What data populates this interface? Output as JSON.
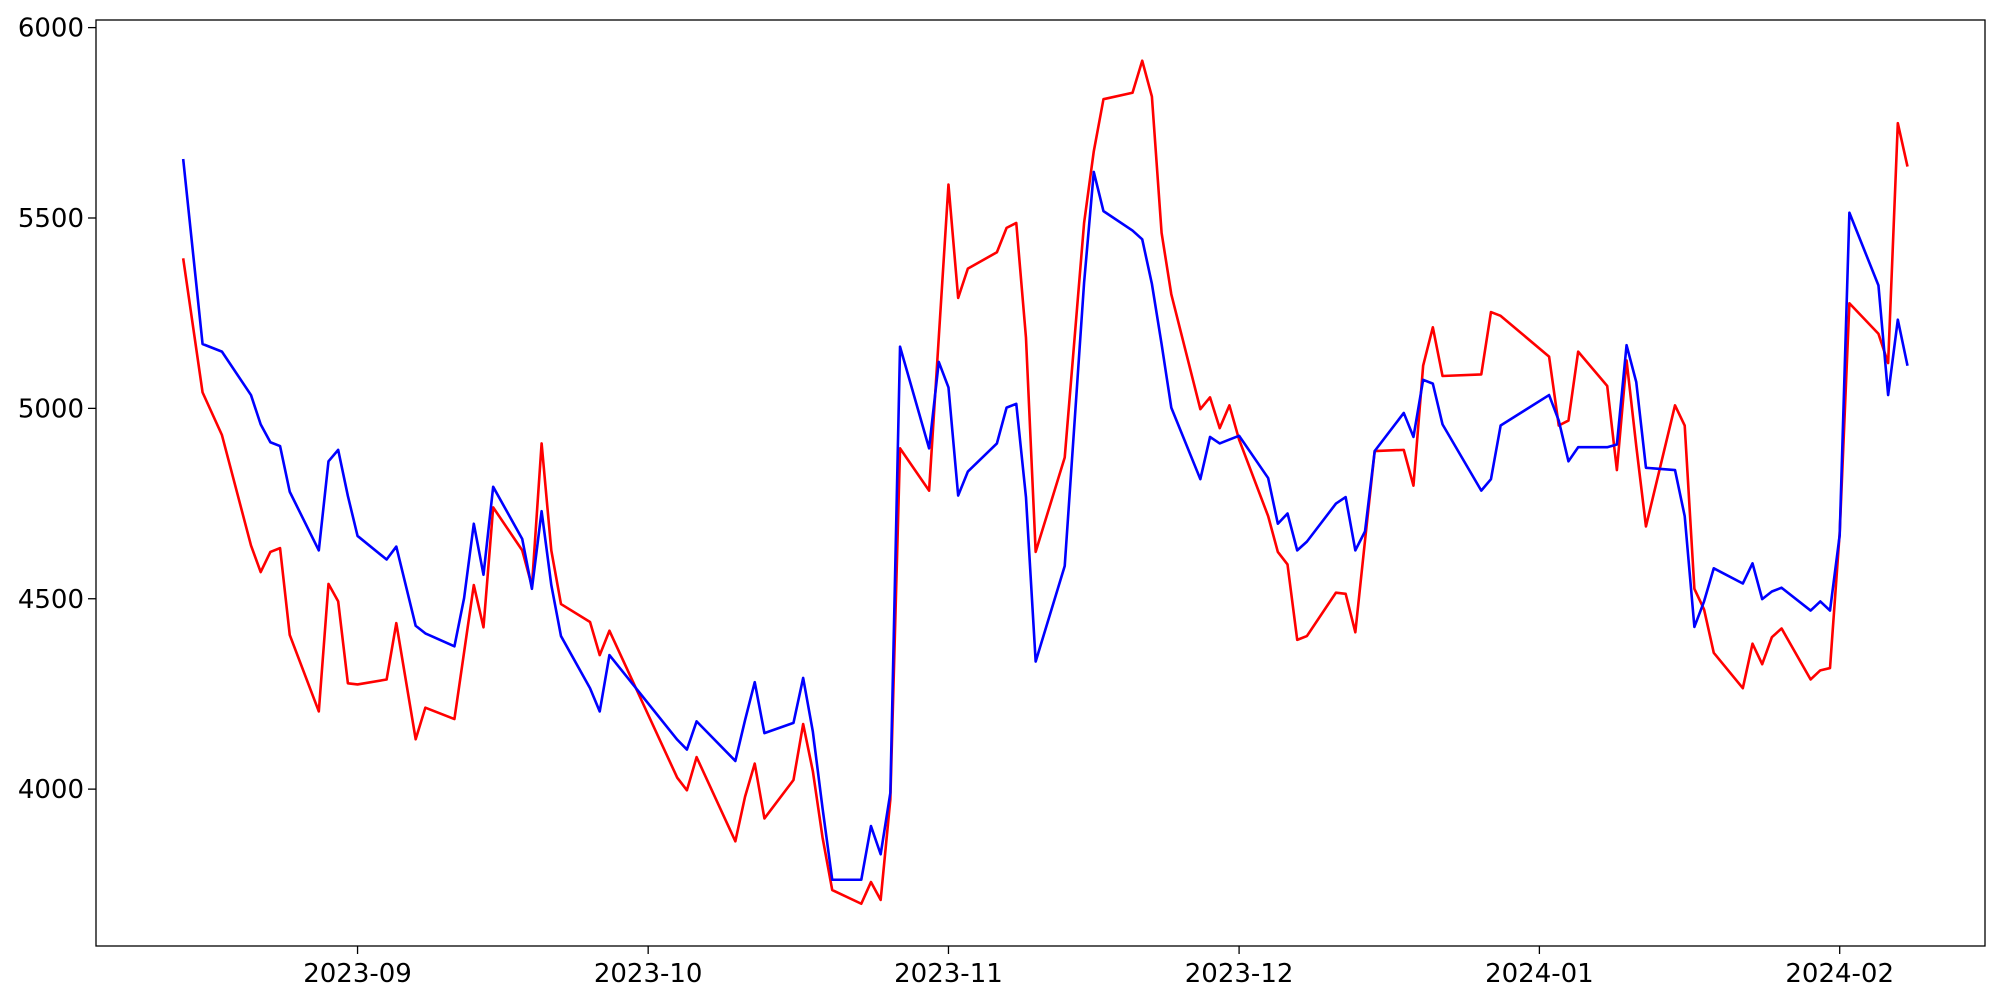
{
  "chart_data": {
    "type": "line",
    "x": [
      "2023-08-14",
      "2023-08-16",
      "2023-08-18",
      "2023-08-21",
      "2023-08-22",
      "2023-08-23",
      "2023-08-24",
      "2023-08-25",
      "2023-08-28",
      "2023-08-29",
      "2023-08-30",
      "2023-08-31",
      "2023-09-01",
      "2023-09-04",
      "2023-09-05",
      "2023-09-07",
      "2023-09-08",
      "2023-09-11",
      "2023-09-12",
      "2023-09-13",
      "2023-09-14",
      "2023-09-15",
      "2023-09-18",
      "2023-09-19",
      "2023-09-20",
      "2023-09-21",
      "2023-09-22",
      "2023-09-25",
      "2023-09-26",
      "2023-09-27",
      "2023-10-04",
      "2023-10-05",
      "2023-10-06",
      "2023-10-10",
      "2023-10-11",
      "2023-10-12",
      "2023-10-13",
      "2023-10-16",
      "2023-10-17",
      "2023-10-18",
      "2023-10-19",
      "2023-10-20",
      "2023-10-23",
      "2023-10-24",
      "2023-10-25",
      "2023-10-26",
      "2023-10-27",
      "2023-10-30",
      "2023-10-31",
      "2023-11-01",
      "2023-11-02",
      "2023-11-03",
      "2023-11-06",
      "2023-11-07",
      "2023-11-08",
      "2023-11-09",
      "2023-11-10",
      "2023-11-13",
      "2023-11-15",
      "2023-11-16",
      "2023-11-17",
      "2023-11-20",
      "2023-11-21",
      "2023-11-22",
      "2023-11-23",
      "2023-11-24",
      "2023-11-27",
      "2023-11-28",
      "2023-11-29",
      "2023-11-30",
      "2023-12-01",
      "2023-12-04",
      "2023-12-05",
      "2023-12-06",
      "2023-12-07",
      "2023-12-08",
      "2023-12-11",
      "2023-12-12",
      "2023-12-13",
      "2023-12-14",
      "2023-12-15",
      "2023-12-18",
      "2023-12-19",
      "2023-12-20",
      "2023-12-21",
      "2023-12-22",
      "2023-12-26",
      "2023-12-27",
      "2023-12-28",
      "2024-01-02",
      "2024-01-03",
      "2024-01-04",
      "2024-01-05",
      "2024-01-08",
      "2024-01-09",
      "2024-01-10",
      "2024-01-11",
      "2024-01-12",
      "2024-01-15",
      "2024-01-16",
      "2024-01-17",
      "2024-01-18",
      "2024-01-19",
      "2024-01-22",
      "2024-01-23",
      "2024-01-24",
      "2024-01-25",
      "2024-01-26",
      "2024-01-29",
      "2024-01-30",
      "2024-01-31",
      "2024-02-01",
      "2024-02-02",
      "2024-02-05",
      "2024-02-06",
      "2024-02-07",
      "2024-02-08"
    ],
    "series": [
      {
        "color": "#ff0000",
        "values": [
          5394,
          5042,
          4930,
          4640,
          4570,
          4623,
          4633,
          4405,
          4204,
          4539,
          4493,
          4278,
          4275,
          4288,
          4436,
          4131,
          4214,
          4184,
          4360,
          4536,
          4425,
          4740,
          4627,
          4533,
          4908,
          4627,
          4486,
          4439,
          4352,
          4416,
          4030,
          3997,
          4084,
          3863,
          3980,
          4067,
          3923,
          4024,
          4171,
          4047,
          3873,
          3735,
          3699,
          3756,
          3709,
          3973,
          4895,
          4784,
          5186,
          5588,
          5290,
          5367,
          5410,
          5474,
          5487,
          5186,
          4623,
          4871,
          5487,
          5675,
          5812,
          5829,
          5913,
          5819,
          5461,
          5300,
          4998,
          5029,
          4948,
          5008,
          4918,
          4717,
          4623,
          4590,
          4392,
          4402,
          4516,
          4513,
          4412,
          4653,
          4888,
          4891,
          4797,
          5112,
          5213,
          5085,
          5089,
          5253,
          5243,
          5136,
          4955,
          4968,
          5149,
          5059,
          4838,
          5126,
          4901,
          4690,
          5008,
          4955,
          4526,
          4472,
          4358,
          4265,
          4382,
          4328,
          4399,
          4422,
          4288,
          4312,
          4318,
          4673,
          5276,
          5196,
          5119,
          5749,
          5635
        ]
      },
      {
        "color": "#0000ff",
        "values": [
          5655,
          5169,
          5149,
          5035,
          4958,
          4911,
          4901,
          4781,
          4627,
          4861,
          4891,
          4770,
          4665,
          4603,
          4637,
          4429,
          4409,
          4375,
          4502,
          4697,
          4563,
          4794,
          4657,
          4526,
          4730,
          4536,
          4402,
          4265,
          4204,
          4352,
          4130,
          4104,
          4178,
          4074,
          4181,
          4281,
          4147,
          4174,
          4292,
          4151,
          3950,
          3762,
          3762,
          3903,
          3829,
          3990,
          5162,
          4895,
          5122,
          5055,
          4771,
          4834,
          4908,
          5002,
          5012,
          4767,
          4335,
          4586,
          5330,
          5621,
          5518,
          5467,
          5444,
          5327,
          5169,
          5002,
          4814,
          4925,
          4908,
          4918,
          4928,
          4817,
          4697,
          4724,
          4627,
          4650,
          4750,
          4767,
          4627,
          4677,
          4888,
          4988,
          4925,
          5075,
          5065,
          4958,
          4784,
          4814,
          4955,
          5035,
          4968,
          4861,
          4898,
          4898,
          4905,
          5166,
          5069,
          4844,
          4838,
          4717,
          4426,
          4493,
          4580,
          4540,
          4593,
          4499,
          4519,
          4529,
          4469,
          4493,
          4469,
          4667,
          5514,
          5323,
          5035,
          5233,
          5112
        ]
      }
    ],
    "xlim": [
      "2023-08-05",
      "2024-02-16"
    ],
    "xticks": [
      {
        "value": "2023-09-01",
        "label": "2023-09"
      },
      {
        "value": "2023-10-01",
        "label": "2023-10"
      },
      {
        "value": "2023-11-01",
        "label": "2023-11"
      },
      {
        "value": "2023-12-01",
        "label": "2023-12"
      },
      {
        "value": "2024-01-01",
        "label": "2024-01"
      },
      {
        "value": "2024-02-01",
        "label": "2024-02"
      }
    ],
    "ylim": [
      3588,
      6020
    ],
    "yticks": [
      4000,
      4500,
      5000,
      5500,
      6000
    ],
    "grid": false
  }
}
